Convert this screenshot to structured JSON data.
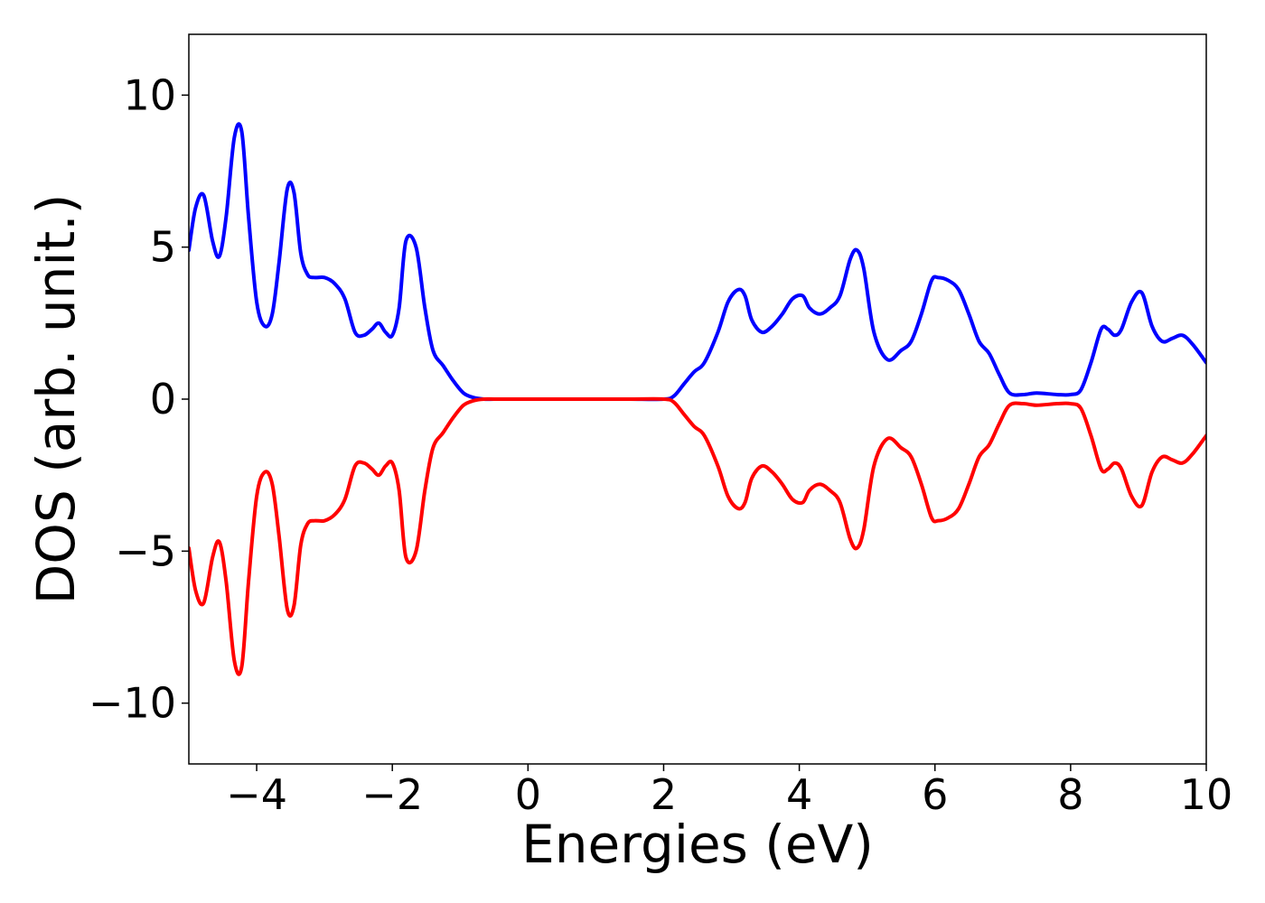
{
  "chart_data": {
    "type": "line",
    "title": "",
    "xlabel": "Energies (eV)",
    "ylabel": "DOS (arb. unit.)",
    "xlim": [
      -5,
      10
    ],
    "ylim": [
      -12,
      12
    ],
    "grid": false,
    "x_ticks": [
      -4,
      -2,
      0,
      2,
      4,
      6,
      8,
      10
    ],
    "y_ticks": [
      -10,
      -5,
      0,
      5,
      10
    ],
    "x_tick_labels": [
      "−4",
      "−2",
      "0",
      "2",
      "4",
      "6",
      "8",
      "10"
    ],
    "y_tick_labels": [
      "−10",
      "−5",
      "0",
      "5",
      "10"
    ],
    "series": [
      {
        "color": "#0000ff",
        "x": [
          -5.0,
          -4.9,
          -4.78,
          -4.65,
          -4.55,
          -4.45,
          -4.33,
          -4.22,
          -4.12,
          -4.0,
          -3.88,
          -3.77,
          -3.67,
          -3.55,
          -3.45,
          -3.35,
          -3.25,
          -3.15,
          -3.0,
          -2.85,
          -2.7,
          -2.55,
          -2.42,
          -2.3,
          -2.2,
          -2.1,
          -2.0,
          -1.9,
          -1.8,
          -1.65,
          -1.52,
          -1.4,
          -1.25,
          -1.1,
          -0.95,
          -0.8,
          -0.65,
          -0.5,
          -0.3,
          0.0,
          0.5,
          1.0,
          1.5,
          2.0,
          2.15,
          2.3,
          2.45,
          2.6,
          2.8,
          2.95,
          3.1,
          3.2,
          3.3,
          3.45,
          3.6,
          3.75,
          3.9,
          4.05,
          4.15,
          4.3,
          4.45,
          4.6,
          4.75,
          4.85,
          4.95,
          5.1,
          5.3,
          5.5,
          5.65,
          5.8,
          5.95,
          6.05,
          6.2,
          6.35,
          6.5,
          6.65,
          6.8,
          6.95,
          7.1,
          7.3,
          7.5,
          7.8,
          8.0,
          8.15,
          8.3,
          8.45,
          8.55,
          8.65,
          8.75,
          8.9,
          9.05,
          9.2,
          9.35,
          9.5,
          9.65,
          9.8,
          10.0
        ],
        "values": [
          4.9,
          6.3,
          6.7,
          5.2,
          4.7,
          6.0,
          8.6,
          8.8,
          6.0,
          3.2,
          2.4,
          2.8,
          4.5,
          6.9,
          6.8,
          4.8,
          4.1,
          4.0,
          4.0,
          3.8,
          3.3,
          2.2,
          2.1,
          2.3,
          2.5,
          2.2,
          2.1,
          3.0,
          5.2,
          5.0,
          3.0,
          1.6,
          1.1,
          0.6,
          0.2,
          0.05,
          0.0,
          0.0,
          0.0,
          0.0,
          0.0,
          0.0,
          0.0,
          0.0,
          0.1,
          0.5,
          0.9,
          1.2,
          2.2,
          3.2,
          3.6,
          3.4,
          2.6,
          2.2,
          2.4,
          2.8,
          3.3,
          3.4,
          3.0,
          2.8,
          3.0,
          3.4,
          4.6,
          4.9,
          4.3,
          2.2,
          1.3,
          1.6,
          1.9,
          2.8,
          3.9,
          4.0,
          3.9,
          3.6,
          2.8,
          1.9,
          1.5,
          0.8,
          0.2,
          0.15,
          0.2,
          0.15,
          0.15,
          0.3,
          1.2,
          2.3,
          2.3,
          2.1,
          2.3,
          3.2,
          3.5,
          2.4,
          1.9,
          2.0,
          2.1,
          1.8,
          1.2
        ]
      },
      {
        "color": "#ff0000",
        "x": [
          -5.0,
          -4.9,
          -4.78,
          -4.65,
          -4.55,
          -4.45,
          -4.33,
          -4.22,
          -4.12,
          -4.0,
          -3.88,
          -3.77,
          -3.67,
          -3.55,
          -3.45,
          -3.35,
          -3.25,
          -3.15,
          -3.0,
          -2.85,
          -2.7,
          -2.55,
          -2.42,
          -2.3,
          -2.2,
          -2.1,
          -2.0,
          -1.9,
          -1.8,
          -1.65,
          -1.52,
          -1.4,
          -1.25,
          -1.1,
          -0.95,
          -0.8,
          -0.65,
          -0.5,
          -0.3,
          0.0,
          0.5,
          1.0,
          1.5,
          2.0,
          2.15,
          2.3,
          2.45,
          2.6,
          2.8,
          2.95,
          3.1,
          3.2,
          3.3,
          3.45,
          3.6,
          3.75,
          3.9,
          4.05,
          4.15,
          4.3,
          4.45,
          4.6,
          4.75,
          4.85,
          4.95,
          5.1,
          5.3,
          5.5,
          5.65,
          5.8,
          5.95,
          6.05,
          6.2,
          6.35,
          6.5,
          6.65,
          6.8,
          6.95,
          7.1,
          7.3,
          7.5,
          7.8,
          8.0,
          8.15,
          8.3,
          8.45,
          8.55,
          8.65,
          8.75,
          8.9,
          9.05,
          9.2,
          9.35,
          9.5,
          9.65,
          9.8,
          10.0
        ],
        "values": [
          -4.9,
          -6.3,
          -6.7,
          -5.2,
          -4.7,
          -6.0,
          -8.6,
          -8.8,
          -6.0,
          -3.2,
          -2.4,
          -2.8,
          -4.5,
          -6.9,
          -6.8,
          -4.8,
          -4.1,
          -4.0,
          -4.0,
          -3.8,
          -3.3,
          -2.2,
          -2.1,
          -2.3,
          -2.5,
          -2.2,
          -2.1,
          -3.0,
          -5.2,
          -5.0,
          -3.0,
          -1.6,
          -1.1,
          -0.6,
          -0.2,
          -0.05,
          0.0,
          0.0,
          0.0,
          0.0,
          0.0,
          0.0,
          0.0,
          0.0,
          -0.1,
          -0.5,
          -0.9,
          -1.2,
          -2.2,
          -3.2,
          -3.6,
          -3.4,
          -2.6,
          -2.2,
          -2.4,
          -2.8,
          -3.3,
          -3.4,
          -3.0,
          -2.8,
          -3.0,
          -3.4,
          -4.6,
          -4.9,
          -4.3,
          -2.2,
          -1.3,
          -1.6,
          -1.9,
          -2.8,
          -3.9,
          -4.0,
          -3.9,
          -3.6,
          -2.8,
          -1.9,
          -1.5,
          -0.8,
          -0.2,
          -0.15,
          -0.2,
          -0.15,
          -0.15,
          -0.3,
          -1.2,
          -2.3,
          -2.3,
          -2.1,
          -2.3,
          -3.2,
          -3.5,
          -2.4,
          -1.9,
          -2.0,
          -2.1,
          -1.8,
          -1.2
        ]
      }
    ]
  }
}
